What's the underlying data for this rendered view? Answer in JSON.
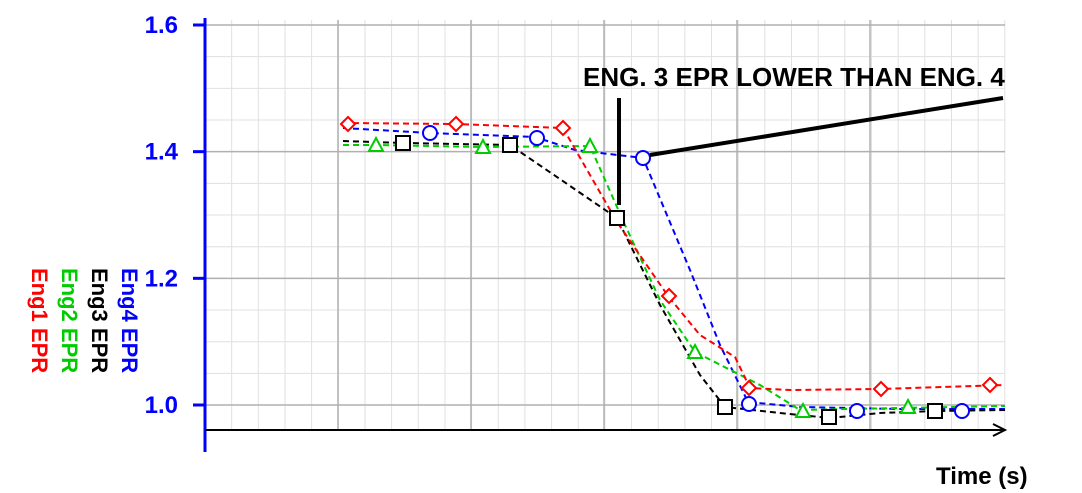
{
  "chart_data": {
    "type": "line",
    "title": "",
    "xlabel": "Time (s)",
    "ylabel": "",
    "ylim": [
      0.96,
      1.6
    ],
    "yticks": [
      "1.0",
      "1.2",
      "1.4",
      "1.6"
    ],
    "grid": true,
    "legend_placement": "left, rotated vertical",
    "annotation": "ENG. 3 EPR LOWER THAN ENG. 4",
    "series": [
      {
        "name": "Eng4 EPR",
        "color": "#0000ff",
        "marker": "circle",
        "x": [
          10.0,
          12.5,
          15.0,
          17.5,
          20.0,
          22.5,
          25.0,
          27.5,
          30.0
        ],
        "y": [
          1.432,
          1.425,
          1.418,
          1.386,
          1.0,
          0.99,
          0.988,
          0.988,
          0.988
        ],
        "markers": [
          [
            12.0,
            1.425
          ],
          [
            16.0,
            1.418
          ],
          [
            18.5,
            1.386
          ],
          [
            23.6,
            1.0
          ],
          [
            28.8,
            0.988
          ],
          [
            33.8,
            0.988
          ]
        ]
      },
      {
        "name": "Eng3 EPR",
        "color": "#000000",
        "marker": "square",
        "markers": [
          [
            12.5,
            1.41
          ],
          [
            17.0,
            1.407
          ],
          [
            21.3,
            1.292
          ],
          [
            25.2,
            0.996
          ],
          [
            29.3,
            0.98
          ],
          [
            34.1,
            0.99
          ]
        ]
      },
      {
        "name": "Eng2 EPR",
        "color": "#00cc00",
        "marker": "triangle",
        "markers": [
          [
            10.5,
            1.41
          ],
          [
            15.3,
            1.407
          ],
          [
            19.8,
            1.403
          ],
          [
            24.0,
            1.08
          ],
          [
            27.8,
            0.99
          ],
          [
            32.5,
            0.99
          ]
        ]
      },
      {
        "name": "Eng1 EPR",
        "color": "#ff0000",
        "marker": "diamond",
        "markers": [
          [
            10.0,
            1.442
          ],
          [
            14.8,
            1.44
          ],
          [
            19.4,
            1.433
          ],
          [
            23.4,
            1.162
          ],
          [
            27.6,
            1.025
          ],
          [
            32.1,
            1.023
          ],
          [
            36.3,
            1.03
          ]
        ]
      }
    ]
  }
}
